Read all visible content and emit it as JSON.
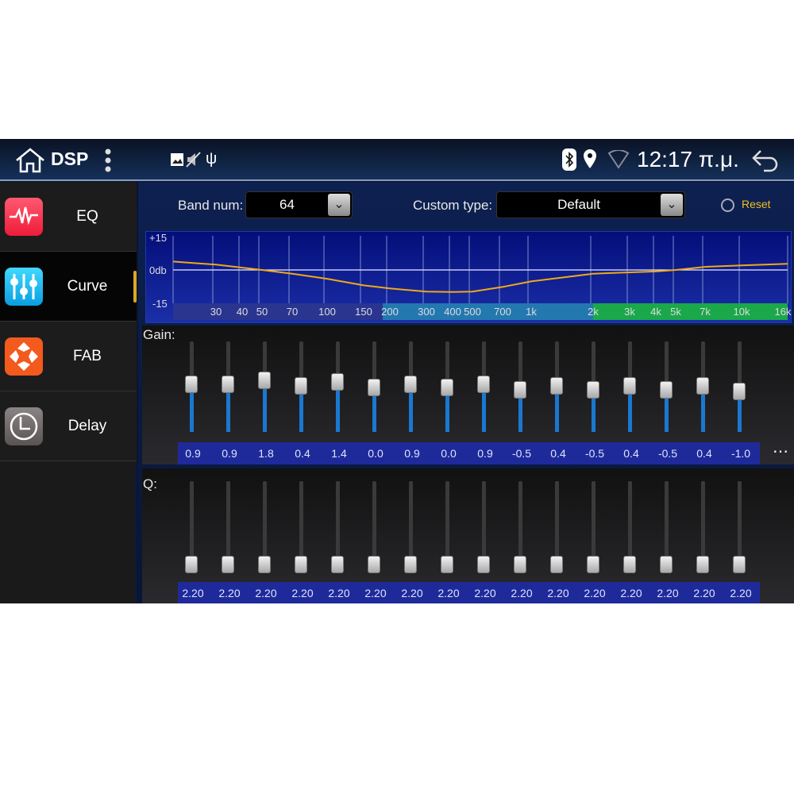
{
  "status_bar": {
    "title": "DSP",
    "time": "12:17 π.μ.",
    "icons": [
      "home-icon",
      "more-vert-icon",
      "image-icon",
      "mute-icon",
      "usb-icon",
      "bluetooth-icon",
      "location-icon",
      "wifi-icon",
      "back-icon"
    ]
  },
  "sidebar": {
    "items": [
      {
        "label": "EQ",
        "icon": "eq-wave-icon",
        "color": "#f0304a",
        "selected": false
      },
      {
        "label": "Curve",
        "icon": "sliders-icon",
        "color": "#18b8ee",
        "selected": true
      },
      {
        "label": "FAB",
        "icon": "fader-balance-icon",
        "color": "#f25a1e",
        "selected": false
      },
      {
        "label": "Delay",
        "icon": "clock-icon",
        "color": "#777070",
        "selected": false
      }
    ]
  },
  "controls": {
    "band_num_label": "Band num:",
    "band_num_value": "64",
    "custom_type_label": "Custom type:",
    "custom_type_value": "Default",
    "reset_label": "Reset",
    "reset_color": "#f0c020"
  },
  "chart_data": {
    "type": "line",
    "y_labels": [
      "+15",
      "0db",
      "-15"
    ],
    "ylim": [
      -15,
      15
    ],
    "x_ticks": [
      "30",
      "40",
      "50",
      "70",
      "100",
      "150",
      "200",
      "300",
      "400",
      "500",
      "700",
      "1k",
      "2k",
      "3k",
      "4k",
      "5k",
      "7k",
      "10k",
      "16k"
    ],
    "x_scale": "log",
    "line_color": "#f0a818",
    "points": [
      [
        20,
        3.8
      ],
      [
        30,
        2.4
      ],
      [
        50,
        0
      ],
      [
        70,
        -1.7
      ],
      [
        100,
        -4
      ],
      [
        150,
        -7
      ],
      [
        200,
        -8.4
      ],
      [
        300,
        -9.8
      ],
      [
        400,
        -10
      ],
      [
        500,
        -9.8
      ],
      [
        700,
        -7.7
      ],
      [
        1000,
        -5.2
      ],
      [
        2000,
        -1.7
      ],
      [
        4000,
        -0.7
      ],
      [
        5000,
        0
      ],
      [
        7000,
        1.4
      ],
      [
        10000,
        2.1
      ],
      [
        20000,
        2.8
      ]
    ]
  },
  "gain": {
    "label": "Gain:",
    "values": [
      "0.9",
      "0.9",
      "1.8",
      "0.4",
      "1.4",
      "0.0",
      "0.9",
      "0.0",
      "0.9",
      "-0.5",
      "0.4",
      "-0.5",
      "0.4",
      "-0.5",
      "0.4",
      "-1.0"
    ],
    "more": "⋯"
  },
  "q": {
    "label": "Q:",
    "values": [
      "2.20",
      "2.20",
      "2.20",
      "2.20",
      "2.20",
      "2.20",
      "2.20",
      "2.20",
      "2.20",
      "2.20",
      "2.20",
      "2.20",
      "2.20",
      "2.20",
      "2.20",
      "2.20"
    ]
  }
}
